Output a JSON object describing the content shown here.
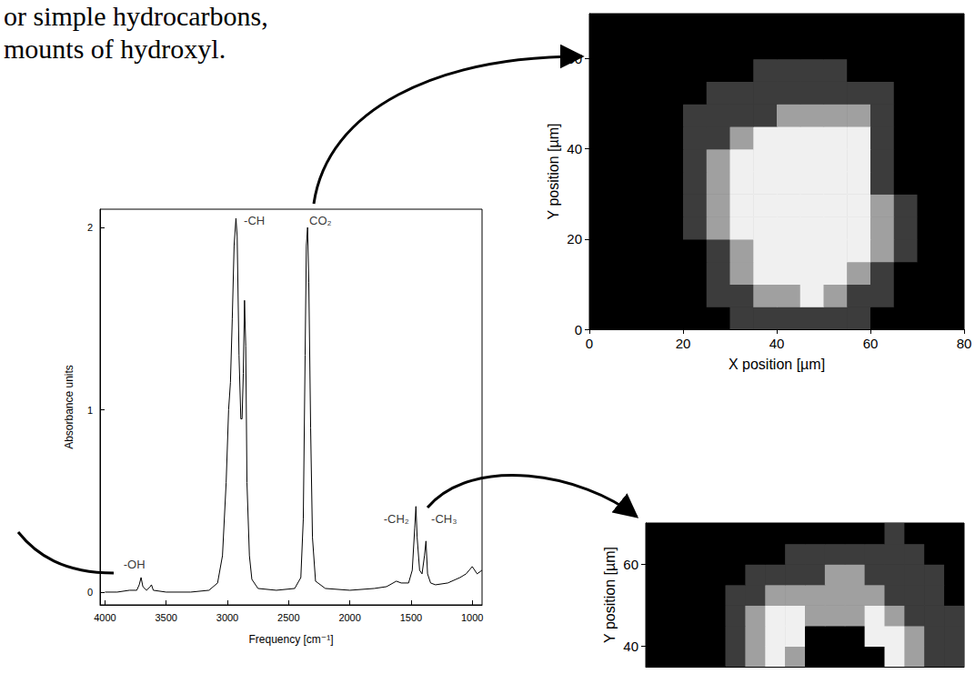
{
  "header": {
    "lines": [
      "or simple hydrocarbons,",
      "mounts of hydroxyl."
    ]
  },
  "chart_data": [
    {
      "type": "line",
      "x_label": "Frequency [cm⁻¹]",
      "y_label": "Absorbance units",
      "xlim": [
        4040,
        920
      ],
      "xticks": [
        4000,
        3500,
        3000,
        2500,
        2000,
        1500,
        1000
      ],
      "ylim": [
        -0.07,
        2.1
      ],
      "yticks": [
        0,
        1,
        2
      ],
      "grid": false,
      "color": "#000000",
      "x": [
        4000,
        3900,
        3800,
        3740,
        3720,
        3705,
        3690,
        3660,
        3630,
        3620,
        3605,
        3500,
        3300,
        3150,
        3080,
        3040,
        3010,
        2990,
        2975,
        2960,
        2945,
        2930,
        2920,
        2905,
        2890,
        2880,
        2870,
        2860,
        2850,
        2840,
        2820,
        2800,
        2750,
        2600,
        2450,
        2400,
        2380,
        2365,
        2355,
        2345,
        2335,
        2320,
        2305,
        2280,
        2200,
        2000,
        1800,
        1700,
        1620,
        1580,
        1520,
        1490,
        1470,
        1460,
        1450,
        1430,
        1410,
        1390,
        1378,
        1365,
        1340,
        1300,
        1200,
        1100,
        1050,
        1000,
        960,
        920
      ],
      "values": [
        0,
        0,
        0.01,
        0.01,
        0.04,
        0.08,
        0.03,
        0.01,
        0.03,
        0.04,
        0.01,
        0,
        0,
        0.01,
        0.05,
        0.2,
        0.6,
        1,
        1.15,
        1.5,
        1.9,
        2.05,
        1.95,
        1.3,
        0.95,
        0.95,
        1.2,
        1.6,
        1.35,
        0.6,
        0.2,
        0.07,
        0.02,
        0.01,
        0.02,
        0.08,
        0.4,
        1.3,
        1.9,
        2,
        1.7,
        0.9,
        0.3,
        0.06,
        0.02,
        0.01,
        0.02,
        0.03,
        0.06,
        0.05,
        0.05,
        0.12,
        0.35,
        0.47,
        0.3,
        0.12,
        0.1,
        0.2,
        0.28,
        0.1,
        0.05,
        0.04,
        0.05,
        0.08,
        0.1,
        0.14,
        0.1,
        0.12
      ],
      "annotations": [
        {
          "text": "-OH",
          "x": 3760,
          "y": 0.15
        },
        {
          "text": "-CH",
          "x": 2780,
          "y": 2.04
        },
        {
          "text": "CO₂",
          "x": 2240,
          "y": 2.04
        },
        {
          "text": "-CH₂",
          "x": 1620,
          "y": 0.4
        },
        {
          "text": "-CH₃",
          "x": 1230,
          "y": 0.4
        }
      ]
    },
    {
      "type": "heatmap",
      "x_label": "X position [µm]",
      "y_label": "Y position [µm]",
      "xlim": [
        0,
        80
      ],
      "xticks": [
        0,
        20,
        40,
        60,
        80
      ],
      "ylim": [
        0,
        70
      ],
      "yticks": [
        0,
        20,
        40,
        60
      ],
      "grid": false,
      "colors": [
        "#000000",
        "#3c3c3c",
        "#a0a0a0",
        "#f0f0f0"
      ],
      "x_edges": [
        0,
        5,
        10,
        15,
        20,
        25,
        30,
        35,
        40,
        45,
        50,
        55,
        60,
        65,
        70,
        75,
        80
      ],
      "y_edges": [
        0,
        5,
        10,
        15,
        20,
        25,
        30,
        35,
        40,
        45,
        50,
        55,
        60,
        65,
        70
      ],
      "cells": [
        [
          0,
          0,
          0,
          0,
          0,
          0,
          1,
          1,
          1,
          1,
          1,
          1,
          0,
          0,
          0,
          0
        ],
        [
          0,
          0,
          0,
          0,
          0,
          1,
          1,
          2,
          2,
          3,
          2,
          1,
          1,
          0,
          0,
          0
        ],
        [
          0,
          0,
          0,
          0,
          0,
          1,
          2,
          3,
          3,
          3,
          3,
          2,
          1,
          0,
          0,
          0
        ],
        [
          0,
          0,
          0,
          0,
          0,
          1,
          2,
          3,
          3,
          3,
          3,
          3,
          2,
          1,
          0,
          0
        ],
        [
          0,
          0,
          0,
          0,
          1,
          2,
          3,
          3,
          3,
          3,
          3,
          3,
          2,
          1,
          0,
          0
        ],
        [
          0,
          0,
          0,
          0,
          1,
          2,
          3,
          3,
          3,
          3,
          3,
          3,
          2,
          1,
          0,
          0
        ],
        [
          0,
          0,
          0,
          0,
          1,
          2,
          3,
          3,
          3,
          3,
          3,
          3,
          1,
          0,
          0,
          0
        ],
        [
          0,
          0,
          0,
          0,
          1,
          2,
          3,
          3,
          3,
          3,
          3,
          3,
          1,
          0,
          0,
          0
        ],
        [
          0,
          0,
          0,
          0,
          1,
          1,
          2,
          3,
          3,
          3,
          3,
          3,
          1,
          0,
          0,
          0
        ],
        [
          0,
          0,
          0,
          0,
          1,
          1,
          1,
          1,
          2,
          2,
          2,
          2,
          1,
          0,
          0,
          0
        ],
        [
          0,
          0,
          0,
          0,
          0,
          1,
          1,
          1,
          1,
          1,
          1,
          1,
          1,
          0,
          0,
          0
        ],
        [
          0,
          0,
          0,
          0,
          0,
          0,
          0,
          1,
          1,
          1,
          1,
          0,
          0,
          0,
          0,
          0
        ],
        [
          0,
          0,
          0,
          0,
          0,
          0,
          0,
          0,
          0,
          0,
          0,
          0,
          0,
          0,
          0,
          0
        ],
        [
          0,
          0,
          0,
          0,
          0,
          0,
          0,
          0,
          0,
          0,
          0,
          0,
          0,
          0,
          0,
          0
        ]
      ]
    },
    {
      "type": "heatmap",
      "y_label": "Y position [µm]",
      "xlim": [
        0,
        80
      ],
      "ylim": [
        35,
        70
      ],
      "yticks": [
        40,
        60
      ],
      "tick_labels": "y",
      "grid": false,
      "colors": [
        "#000000",
        "#3c3c3c",
        "#a0a0a0",
        "#f0f0f0"
      ],
      "x_edges": [
        0,
        5,
        10,
        15,
        20,
        25,
        30,
        35,
        40,
        45,
        50,
        55,
        60,
        65,
        70,
        75,
        80
      ],
      "y_edges": [
        35,
        40,
        45,
        50,
        55,
        60,
        65,
        70
      ],
      "cells": [
        [
          0,
          0,
          0,
          0,
          1,
          2,
          3,
          2,
          0,
          0,
          0,
          0,
          3,
          2,
          1,
          1
        ],
        [
          0,
          0,
          0,
          0,
          1,
          2,
          3,
          3,
          0,
          0,
          0,
          3,
          3,
          2,
          1,
          1
        ],
        [
          0,
          0,
          0,
          0,
          1,
          2,
          3,
          3,
          2,
          2,
          2,
          3,
          2,
          1,
          1,
          1
        ],
        [
          0,
          0,
          0,
          0,
          1,
          1,
          2,
          2,
          2,
          2,
          2,
          2,
          1,
          1,
          1,
          0
        ],
        [
          0,
          0,
          0,
          0,
          0,
          1,
          1,
          1,
          1,
          2,
          2,
          1,
          1,
          1,
          1,
          0
        ],
        [
          0,
          0,
          0,
          0,
          0,
          0,
          0,
          1,
          1,
          1,
          1,
          1,
          1,
          1,
          0,
          0
        ],
        [
          0,
          0,
          0,
          0,
          0,
          0,
          0,
          0,
          0,
          0,
          0,
          0,
          1,
          0,
          0,
          0
        ]
      ]
    }
  ]
}
